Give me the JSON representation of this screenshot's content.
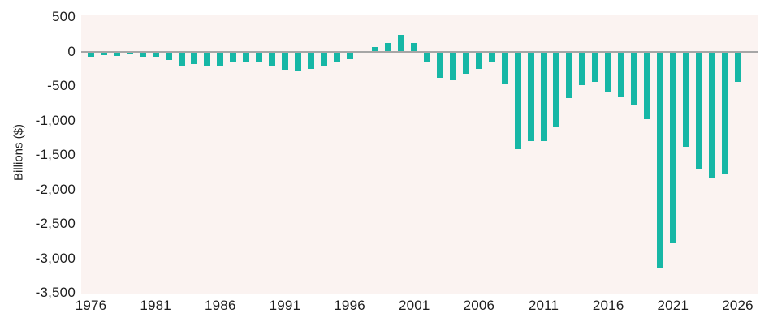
{
  "colors": {
    "bar": "#17b7a6",
    "plot_background": "#fbf3f1",
    "zero_line": "#a6a6a6",
    "text": "#1e1e1e",
    "canvas_background": "#ffffff"
  },
  "chart_data": {
    "type": "bar",
    "title": "",
    "xlabel": "",
    "ylabel": "Billions ($)",
    "legend": "none",
    "grid": "off",
    "ylim": [
      -3520,
      535
    ],
    "categories": [
      1976,
      1977,
      1978,
      1979,
      1980,
      1981,
      1982,
      1983,
      1984,
      1985,
      1986,
      1987,
      1988,
      1989,
      1990,
      1991,
      1992,
      1993,
      1994,
      1995,
      1996,
      1997,
      1998,
      1999,
      2000,
      2001,
      2002,
      2003,
      2004,
      2005,
      2006,
      2007,
      2008,
      2009,
      2010,
      2011,
      2012,
      2013,
      2014,
      2015,
      2016,
      2017,
      2018,
      2019,
      2020,
      2021,
      2022,
      2023,
      2024,
      2025,
      2026
    ],
    "values": [
      -73.7,
      -53.7,
      -59.2,
      -40.7,
      -73.8,
      -79.0,
      -128.0,
      -207.8,
      -185.4,
      -212.3,
      -221.2,
      -149.7,
      -155.2,
      -152.6,
      -221.0,
      -269.2,
      -290.3,
      -255.1,
      -203.2,
      -164.0,
      -107.4,
      -21.9,
      69.3,
      125.6,
      236.2,
      128.2,
      -157.8,
      -377.6,
      -412.7,
      -318.3,
      -248.2,
      -160.7,
      -458.6,
      -1412.7,
      -1294.4,
      -1299.6,
      -1087.0,
      -679.8,
      -484.8,
      -441.9,
      -584.7,
      -665.4,
      -779.0,
      -984.4,
      -3131.9,
      -2775.3,
      -1375.4,
      -1695.2,
      -1833.8,
      -1775.0,
      -440.0
    ],
    "y_ticks": [
      {
        "label": "500",
        "value": 500
      },
      {
        "label": "0",
        "value": 0
      },
      {
        "label": "-500",
        "value": -500
      },
      {
        "label": "-1,000",
        "value": -1000
      },
      {
        "label": "-1,500",
        "value": -1500
      },
      {
        "label": "-2,000",
        "value": -2000
      },
      {
        "label": "-2,500",
        "value": -2500
      },
      {
        "label": "-3,000",
        "value": -3000
      },
      {
        "label": "-3,500",
        "value": -3500
      }
    ],
    "x_ticks": [
      "1976",
      "1981",
      "1986",
      "1991",
      "1996",
      "2001",
      "2006",
      "2011",
      "2016",
      "2021",
      "2026"
    ]
  }
}
